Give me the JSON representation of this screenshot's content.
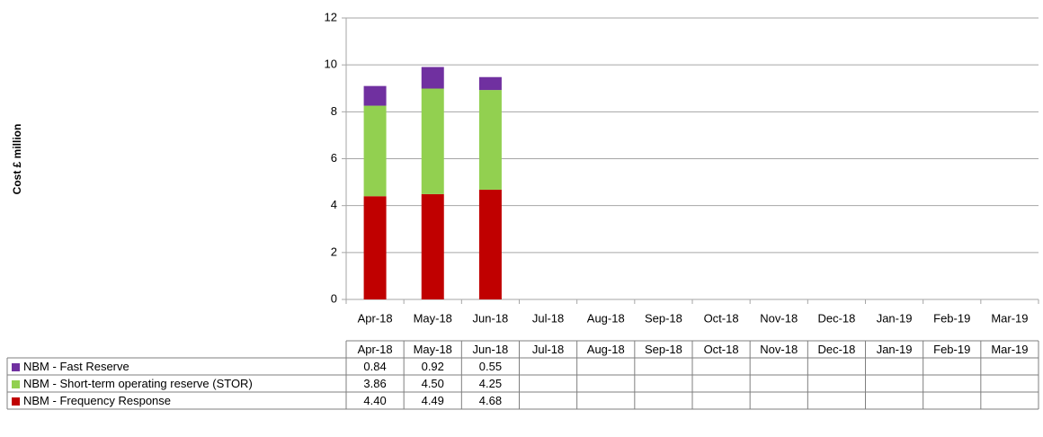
{
  "chart_data": {
    "type": "bar",
    "stacked": true,
    "y_label": "Cost £ million",
    "categories": [
      "Apr-18",
      "May-18",
      "Jun-18",
      "Jul-18",
      "Aug-18",
      "Sep-18",
      "Oct-18",
      "Nov-18",
      "Dec-18",
      "Jan-19",
      "Feb-19",
      "Mar-19"
    ],
    "series": [
      {
        "name": "NBM - Fast Reserve",
        "color": "#7030a0",
        "values": [
          0.84,
          0.92,
          0.55,
          null,
          null,
          null,
          null,
          null,
          null,
          null,
          null,
          null
        ],
        "value_labels": [
          "0.84",
          "0.92",
          "0.55",
          null,
          null,
          null,
          null,
          null,
          null,
          null,
          null,
          null
        ]
      },
      {
        "name": "NBM - Short-term operating reserve (STOR)",
        "color": "#92d050",
        "values": [
          3.86,
          4.5,
          4.25,
          null,
          null,
          null,
          null,
          null,
          null,
          null,
          null,
          null
        ],
        "value_labels": [
          "3.86",
          "4.50",
          "4.25",
          null,
          null,
          null,
          null,
          null,
          null,
          null,
          null,
          null
        ]
      },
      {
        "name": "NBM - Frequency Response",
        "color": "#c00000",
        "values": [
          4.4,
          4.49,
          4.68,
          null,
          null,
          null,
          null,
          null,
          null,
          null,
          null,
          null
        ],
        "value_labels": [
          "4.40",
          "4.49",
          "4.68",
          null,
          null,
          null,
          null,
          null,
          null,
          null,
          null,
          null
        ]
      }
    ],
    "ylim": [
      0,
      12
    ],
    "yticks": [
      0,
      2,
      4,
      6,
      8,
      10,
      12
    ],
    "grid": true
  }
}
